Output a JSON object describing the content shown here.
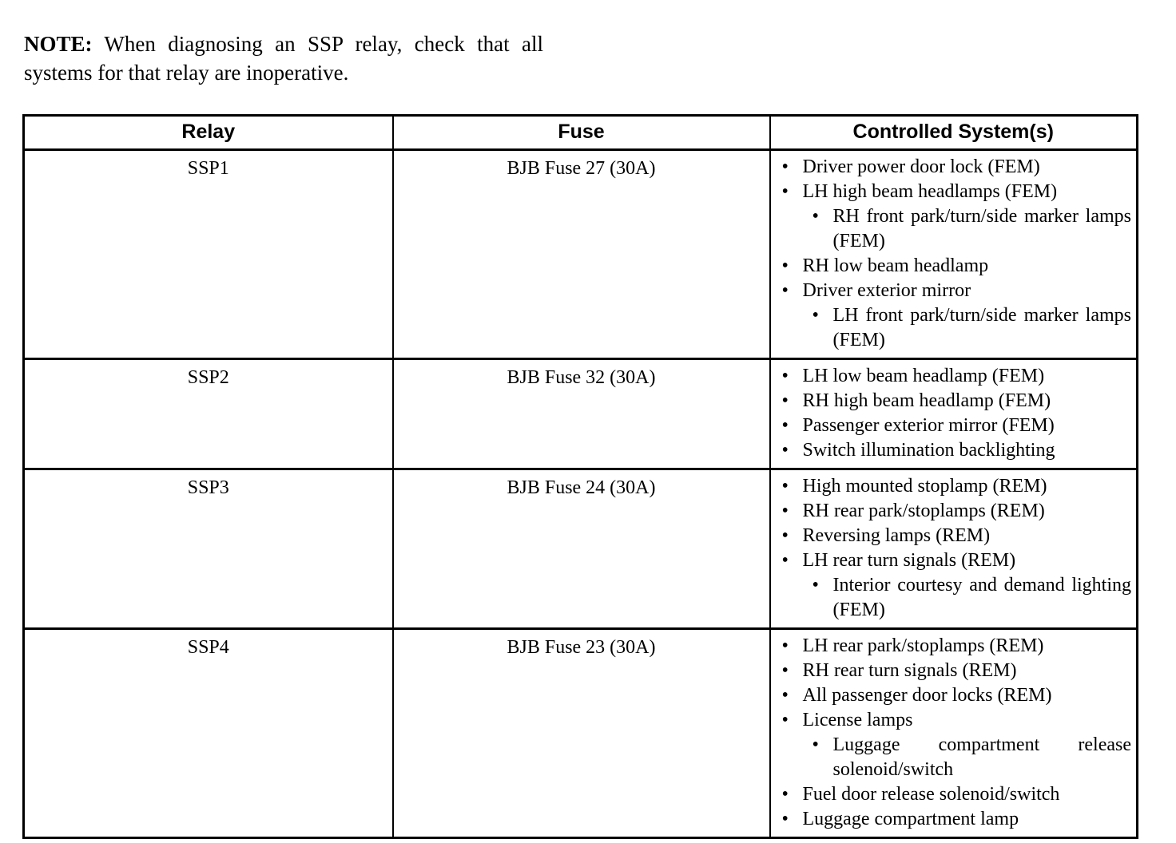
{
  "note": {
    "label": "NOTE:",
    "text": "When diagnosing an SSP relay, check that all systems for that relay are inoperative."
  },
  "table": {
    "headers": [
      "Relay",
      "Fuse",
      "Controlled System(s)"
    ],
    "rows": [
      {
        "relay": "SSP1",
        "fuse": "BJB Fuse 27 (30A)",
        "systems": [
          {
            "level": 1,
            "text": "Driver power door lock (FEM)"
          },
          {
            "level": 1,
            "text": "LH high beam headlamps (FEM)"
          },
          {
            "level": 2,
            "text": "RH front park/turn/side marker lamps (FEM)"
          },
          {
            "level": 1,
            "text": "RH low beam headlamp"
          },
          {
            "level": 1,
            "text": "Driver exterior mirror"
          },
          {
            "level": 2,
            "text": "LH front park/turn/side marker lamps (FEM)"
          }
        ]
      },
      {
        "relay": "SSP2",
        "fuse": "BJB Fuse 32 (30A)",
        "systems": [
          {
            "level": 1,
            "text": "LH low beam headlamp (FEM)"
          },
          {
            "level": 1,
            "text": "RH high beam headlamp (FEM)"
          },
          {
            "level": 1,
            "text": "Passenger exterior mirror (FEM)"
          },
          {
            "level": 1,
            "text": "Switch illumination backlighting"
          }
        ]
      },
      {
        "relay": "SSP3",
        "fuse": "BJB Fuse 24 (30A)",
        "systems": [
          {
            "level": 1,
            "text": "High mounted stoplamp (REM)"
          },
          {
            "level": 1,
            "text": "RH rear park/stoplamps (REM)"
          },
          {
            "level": 1,
            "text": "Reversing lamps (REM)"
          },
          {
            "level": 1,
            "text": "LH rear turn signals (REM)"
          },
          {
            "level": 2,
            "text": "Interior courtesy and demand lighting (FEM)"
          }
        ]
      },
      {
        "relay": "SSP4",
        "fuse": "BJB Fuse 23 (30A)",
        "systems": [
          {
            "level": 1,
            "text": "LH rear park/stoplamps (REM)"
          },
          {
            "level": 1,
            "text": "RH rear turn signals (REM)"
          },
          {
            "level": 1,
            "text": "All passenger door locks (REM)"
          },
          {
            "level": 1,
            "text": "License lamps"
          },
          {
            "level": 2,
            "text": "Luggage compartment release solenoid/switch"
          },
          {
            "level": 1,
            "text": "Fuel door release solenoid/switch"
          },
          {
            "level": 1,
            "text": "Luggage compartment lamp"
          }
        ]
      }
    ]
  }
}
